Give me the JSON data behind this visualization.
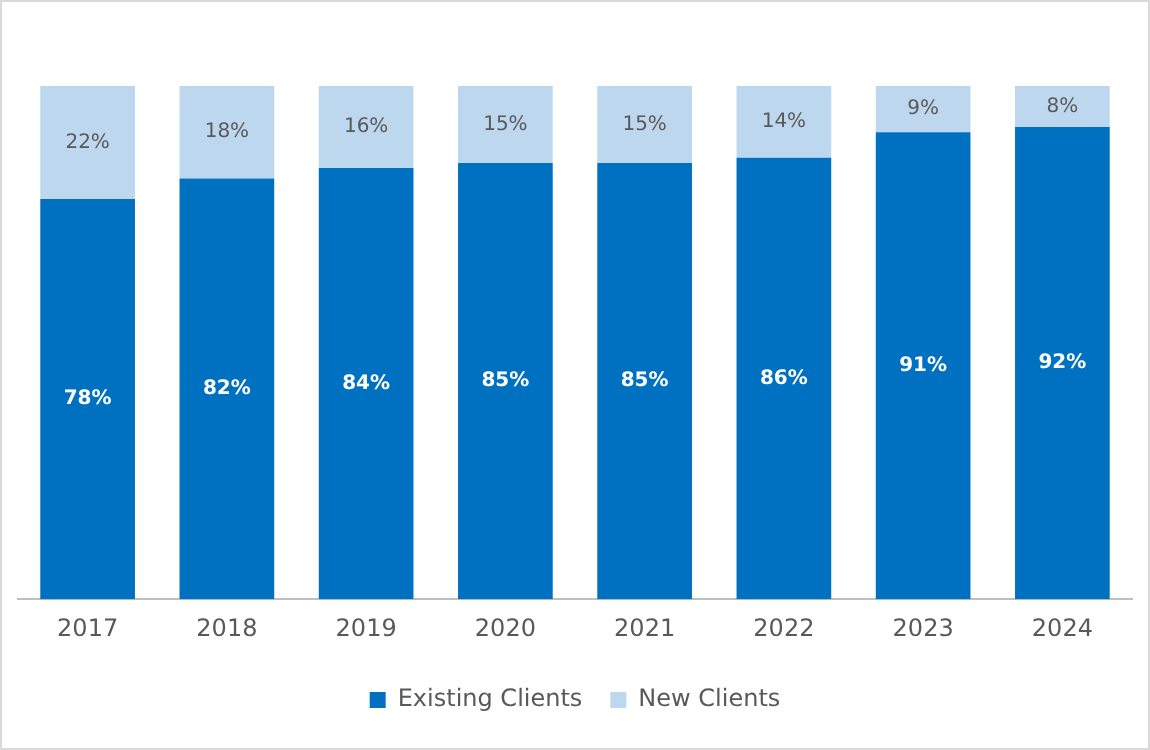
{
  "chart_data": {
    "type": "bar",
    "stacked": true,
    "categories": [
      "2017",
      "2018",
      "2019",
      "2020",
      "2021",
      "2022",
      "2023",
      "2024"
    ],
    "series": [
      {
        "name": "Existing Clients",
        "color": "#0070c0",
        "values": [
          78,
          82,
          84,
          85,
          85,
          86,
          91,
          92
        ],
        "value_labels": [
          "78%",
          "82%",
          "84%",
          "85%",
          "85%",
          "86%",
          "91%",
          "92%"
        ]
      },
      {
        "name": "New Clients",
        "color": "#bdd7ee",
        "values": [
          22,
          18,
          16,
          15,
          15,
          14,
          9,
          8
        ],
        "value_labels": [
          "22%",
          "18%",
          "16%",
          "15%",
          "15%",
          "14%",
          "9%",
          "8%"
        ]
      }
    ],
    "tick_labels": "x",
    "grid": false,
    "legend": "bottom"
  }
}
